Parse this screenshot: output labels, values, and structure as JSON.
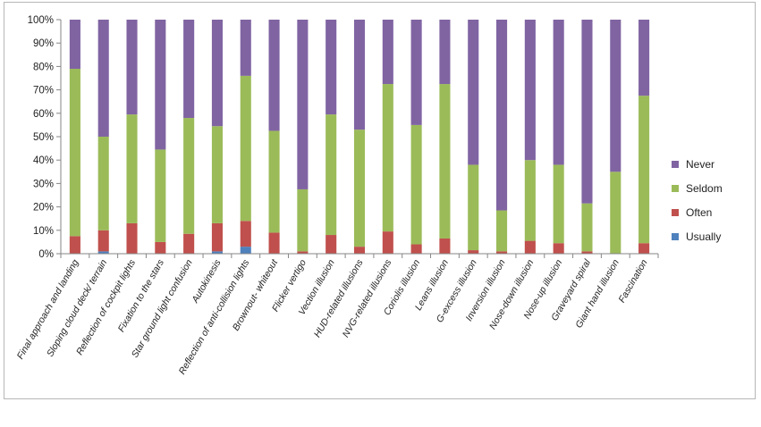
{
  "chart_data": {
    "type": "bar",
    "stacked": true,
    "percent": true,
    "title": "",
    "xlabel": "",
    "ylabel": "",
    "ylim": [
      0,
      100
    ],
    "yticks": [
      "0%",
      "10%",
      "20%",
      "30%",
      "40%",
      "50%",
      "60%",
      "70%",
      "80%",
      "90%",
      "100%"
    ],
    "grid": false,
    "legend_position": "right",
    "categories": [
      "Final approach and landing",
      "Sloping cloud deck/ terrain",
      "Reflection of cockpit lights",
      "Fixation to the stars",
      "Star ground light confusion",
      "Autokinesis",
      "Reflection of anti-collision lights",
      "Brownout- whiteout",
      "Flicker vertigo",
      "Vection illusion",
      "HUD-related illusions",
      "NVG-related illusions",
      "Coriolis illusion",
      "Leans illusion",
      "G-excess illusion",
      "Inversion illusion",
      "Nose-down illusion",
      "Nose-up illusion",
      "Graveyard spiral",
      "Giant hand illusion",
      "Fascination"
    ],
    "series": [
      {
        "name": "Usually",
        "color": "#4f81bd",
        "values": [
          0,
          1,
          0,
          0,
          0,
          1,
          3,
          0,
          0,
          0,
          0,
          0,
          0,
          0,
          0,
          0,
          0,
          0,
          0,
          0,
          0
        ]
      },
      {
        "name": "Often",
        "color": "#c0504d",
        "values": [
          7.5,
          9,
          13,
          5,
          8.5,
          12,
          11,
          9,
          1,
          8,
          3,
          9.5,
          4,
          6.5,
          1.5,
          1,
          5.5,
          4.5,
          1,
          0,
          4.5
        ]
      },
      {
        "name": "Seldom",
        "color": "#9bbb59",
        "values": [
          71.5,
          40,
          46.5,
          39.5,
          49.5,
          41.5,
          62,
          43.5,
          26.5,
          51.5,
          50,
          63,
          51,
          66,
          36.5,
          17.5,
          34.5,
          33.5,
          20.5,
          35,
          63
        ]
      },
      {
        "name": "Never",
        "color": "#8064a2",
        "values": [
          21,
          50,
          40.5,
          55.5,
          42,
          45.5,
          24,
          47.5,
          72.5,
          40.5,
          47,
          27.5,
          45,
          27.5,
          62,
          81.5,
          60,
          62,
          78.5,
          65,
          32.5
        ]
      }
    ],
    "legend_order": [
      "Never",
      "Seldom",
      "Often",
      "Usually"
    ]
  }
}
